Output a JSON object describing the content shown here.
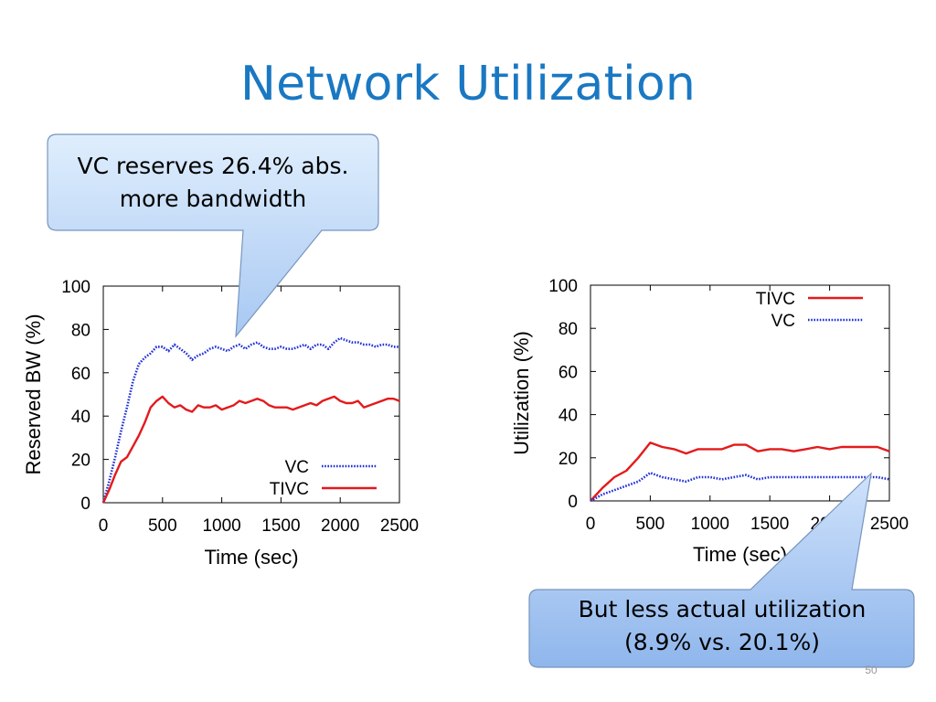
{
  "slide": {
    "title": "Network Utilization",
    "page_number": "50"
  },
  "callouts": {
    "top_line1": "VC reserves 26.4% abs.",
    "top_line2": "more bandwidth",
    "bottom_line1": "But less actual utilization",
    "bottom_line2": "(8.9% vs. 20.1%)"
  },
  "colors": {
    "tivc": "#e31a1c",
    "vc": "#1f2fd6",
    "title": "#1a78c2",
    "callout_top": "#dbe9fb",
    "callout_bottom": "#a9c9f3",
    "callout_border": "#6f8fb8"
  },
  "chart_data": [
    {
      "type": "line",
      "xlabel": "Time (sec)",
      "ylabel": "Reserved BW (%)",
      "xlim": [
        0,
        2500
      ],
      "ylim": [
        0,
        100
      ],
      "xticks": [
        "0",
        "500",
        "1000",
        "1500",
        "2000",
        "2500"
      ],
      "yticks": [
        "0",
        "20",
        "40",
        "60",
        "80",
        "100"
      ],
      "legend_position": "bottom-right",
      "grid": false,
      "series": [
        {
          "name": "VC",
          "style": "dotted",
          "color": "#1f2fd6",
          "x": [
            0,
            50,
            100,
            150,
            200,
            250,
            300,
            350,
            400,
            450,
            500,
            550,
            600,
            650,
            700,
            750,
            800,
            850,
            900,
            950,
            1000,
            1050,
            1100,
            1150,
            1200,
            1250,
            1300,
            1350,
            1400,
            1450,
            1500,
            1550,
            1600,
            1650,
            1700,
            1750,
            1800,
            1850,
            1900,
            1950,
            2000,
            2050,
            2100,
            2150,
            2200,
            2250,
            2300,
            2350,
            2400,
            2450,
            2500
          ],
          "y": [
            0,
            10,
            21,
            33,
            44,
            56,
            64,
            67,
            69,
            72,
            72,
            70,
            73,
            71,
            69,
            66,
            68,
            69,
            71,
            72,
            71,
            70,
            72,
            73,
            71,
            73,
            74,
            72,
            71,
            71,
            72,
            71,
            71,
            72,
            73,
            71,
            73,
            73,
            71,
            74,
            76,
            75,
            74,
            74,
            73,
            73,
            72,
            73,
            73,
            72,
            72
          ]
        },
        {
          "name": "TIVC",
          "style": "solid",
          "color": "#e31a1c",
          "x": [
            0,
            50,
            100,
            150,
            200,
            250,
            300,
            350,
            400,
            450,
            500,
            550,
            600,
            650,
            700,
            750,
            800,
            850,
            900,
            950,
            1000,
            1050,
            1100,
            1150,
            1200,
            1250,
            1300,
            1350,
            1400,
            1450,
            1500,
            1550,
            1600,
            1650,
            1700,
            1750,
            1800,
            1850,
            1900,
            1950,
            2000,
            2050,
            2100,
            2150,
            2200,
            2250,
            2300,
            2350,
            2400,
            2450,
            2500
          ],
          "y": [
            0,
            6,
            13,
            19,
            21,
            26,
            31,
            37,
            44,
            47,
            49,
            46,
            44,
            45,
            43,
            42,
            45,
            44,
            44,
            45,
            43,
            44,
            45,
            47,
            46,
            47,
            48,
            47,
            45,
            44,
            44,
            44,
            43,
            44,
            45,
            46,
            45,
            47,
            48,
            49,
            47,
            46,
            46,
            47,
            44,
            45,
            46,
            47,
            48,
            48,
            47
          ]
        }
      ]
    },
    {
      "type": "line",
      "xlabel": "Time (sec)",
      "ylabel": "Utilization (%)",
      "xlim": [
        0,
        2500
      ],
      "ylim": [
        0,
        100
      ],
      "xticks": [
        "0",
        "500",
        "1000",
        "1500",
        "2000",
        "2500"
      ],
      "yticks": [
        "0",
        "20",
        "40",
        "60",
        "80",
        "100"
      ],
      "legend_position": "top-right",
      "grid": false,
      "series": [
        {
          "name": "TIVC",
          "style": "solid",
          "color": "#e31a1c",
          "x": [
            0,
            100,
            200,
            300,
            400,
            500,
            600,
            700,
            800,
            900,
            1000,
            1100,
            1200,
            1300,
            1400,
            1500,
            1600,
            1700,
            1800,
            1900,
            2000,
            2100,
            2200,
            2300,
            2400,
            2500
          ],
          "y": [
            0,
            6,
            11,
            14,
            20,
            27,
            25,
            24,
            22,
            24,
            24,
            24,
            26,
            26,
            23,
            24,
            24,
            23,
            24,
            25,
            24,
            25,
            25,
            25,
            25,
            23
          ]
        },
        {
          "name": "VC",
          "style": "dotted",
          "color": "#1f2fd6",
          "x": [
            0,
            100,
            200,
            300,
            400,
            500,
            600,
            700,
            800,
            900,
            1000,
            1100,
            1200,
            1300,
            1400,
            1500,
            1600,
            1700,
            1800,
            1900,
            2000,
            2100,
            2200,
            2300,
            2400,
            2500
          ],
          "y": [
            0,
            3,
            5,
            7,
            9,
            13,
            11,
            10,
            9,
            11,
            11,
            10,
            11,
            12,
            10,
            11,
            11,
            11,
            11,
            11,
            11,
            11,
            11,
            11,
            11,
            10
          ]
        }
      ]
    }
  ]
}
